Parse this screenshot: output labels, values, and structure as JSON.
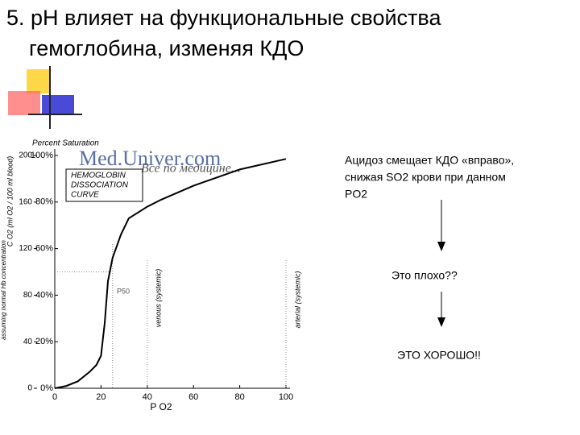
{
  "slide": {
    "title": [
      "5. pH влияет на функциональные свойства",
      "гемоглобина, изменяя КДО"
    ],
    "note": [
      "Ацидоз смещает КДО «вправо»,",
      "снижая SO2 крови при данном",
      "PO2"
    ],
    "step1": "Это плохо??",
    "step2": "ЭТО ХОРОШО!!",
    "watermark": "Med.Univer.com",
    "watermark_sub": "Все по медицине..."
  },
  "chart_data": {
    "type": "line",
    "ylabel": "Percent Saturation",
    "y2label": "C O2 (ml O2 / 100 ml blood)",
    "y2note": "assuming normal Hb concentration",
    "xlabel": "P O2",
    "annotations": [
      "HEMOGLOBIN",
      "DISSOCIATION",
      "CURVE",
      "P50",
      "venous (systemic)",
      "arterial (systemic)"
    ],
    "x": [
      0,
      5,
      10,
      15,
      18,
      20,
      21.6,
      23,
      25,
      28.6,
      32,
      40,
      46,
      60,
      80,
      100
    ],
    "series": [
      {
        "name": "Hb",
        "color": "#000000",
        "values": [
          0,
          1,
          3,
          7,
          10,
          14,
          28,
          46,
          56,
          66,
          73,
          78,
          81,
          87,
          94,
          98.5
        ]
      }
    ],
    "xlim": [
      0,
      100
    ],
    "xticks": [
      0,
      20,
      40,
      60,
      80,
      100
    ],
    "ylim": [
      0,
      100
    ],
    "yticks": [
      {
        "value": 0,
        "label": "0%"
      },
      {
        "value": 20,
        "label": "20%"
      },
      {
        "value": 40,
        "label": "40%"
      },
      {
        "value": 60,
        "label": "60%"
      },
      {
        "value": 80,
        "label": "80%"
      },
      {
        "value": 100,
        "label": "100%"
      }
    ],
    "y2lim": [
      0,
      200
    ],
    "y2ticks": [
      0,
      40,
      80,
      120,
      160,
      200
    ],
    "reference_x": [
      25,
      40,
      100
    ],
    "reference_y": [
      50
    ]
  }
}
